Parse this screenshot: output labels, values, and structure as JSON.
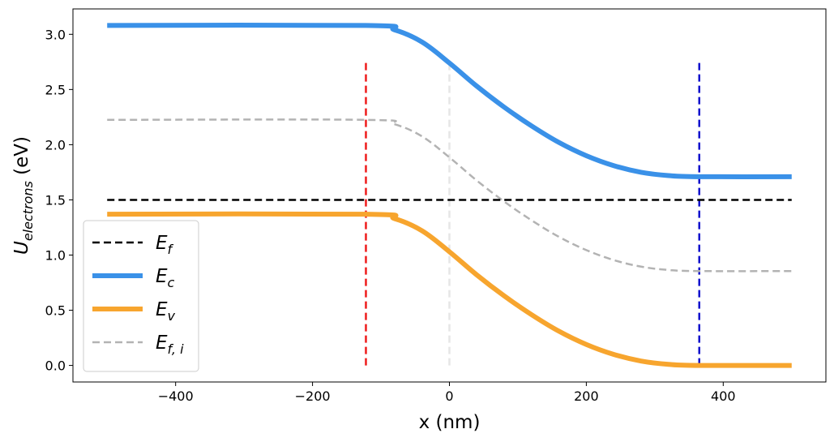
{
  "chart_data": {
    "type": "line",
    "title": "",
    "xlabel": "x (nm)",
    "ylabel": {
      "main": "U",
      "sub": "electrons",
      "unit": " (eV)"
    },
    "xlim": [
      -550,
      550
    ],
    "ylim": [
      -0.15,
      3.23
    ],
    "xticks": [
      -400,
      -200,
      0,
      200,
      400
    ],
    "xtick_labels": [
      "−400",
      "−200",
      "0",
      "200",
      "400"
    ],
    "yticks": [
      0.0,
      0.5,
      1.0,
      1.5,
      2.0,
      2.5,
      3.0
    ],
    "ytick_labels": [
      "0.0",
      "0.5",
      "1.0",
      "1.5",
      "2.0",
      "2.5",
      "3.0"
    ],
    "grid": false,
    "legend_position": "lower-left",
    "series": [
      {
        "name": "E_f",
        "legend": {
          "main": "E",
          "sub": "f"
        },
        "color": "#000000",
        "style": "dashed",
        "width": "medium",
        "x": [
          -500,
          500
        ],
        "y": [
          1.5,
          1.5
        ]
      },
      {
        "name": "E_c",
        "legend": {
          "main": "E",
          "sub": "c"
        },
        "color": "#3a91e8",
        "style": "solid",
        "width": "thick",
        "x": [
          -500,
          -122,
          -80,
          -40,
          0,
          40,
          80,
          120,
          160,
          200,
          240,
          280,
          320,
          365,
          500
        ],
        "y": [
          3.08,
          3.08,
          3.04,
          2.93,
          2.74,
          2.53,
          2.34,
          2.17,
          2.02,
          1.9,
          1.81,
          1.75,
          1.72,
          1.71,
          1.71
        ]
      },
      {
        "name": "E_v",
        "legend": {
          "main": "E",
          "sub": "v"
        },
        "color": "#f7a52e",
        "style": "solid",
        "width": "thick",
        "x": [
          -500,
          -122,
          -80,
          -40,
          0,
          40,
          80,
          120,
          160,
          200,
          240,
          280,
          320,
          365,
          500
        ],
        "y": [
          1.37,
          1.37,
          1.33,
          1.22,
          1.03,
          0.82,
          0.63,
          0.46,
          0.31,
          0.19,
          0.1,
          0.04,
          0.01,
          0.0,
          0.0
        ]
      },
      {
        "name": "E_f,i",
        "legend": {
          "main": "E",
          "sub": "f, i"
        },
        "color": "#b3b3b3",
        "style": "dashed",
        "width": "medium",
        "x": [
          -500,
          -122,
          -80,
          -40,
          0,
          40,
          80,
          120,
          160,
          200,
          240,
          280,
          320,
          365,
          500
        ],
        "y": [
          2.225,
          2.225,
          2.185,
          2.075,
          1.885,
          1.675,
          1.485,
          1.315,
          1.165,
          1.045,
          0.955,
          0.895,
          0.865,
          0.855,
          0.855
        ]
      }
    ],
    "markers": [
      {
        "color": "#ee1c1c",
        "style": "dashed",
        "x": -122,
        "y": [
          0.0,
          2.74
        ]
      },
      {
        "color": "#e6e6e6",
        "style": "dashed",
        "x": 0,
        "y": [
          0.0,
          2.74
        ]
      },
      {
        "color": "#1111cc",
        "style": "dashed",
        "x": 365,
        "y": [
          0.0,
          2.74
        ]
      }
    ]
  }
}
